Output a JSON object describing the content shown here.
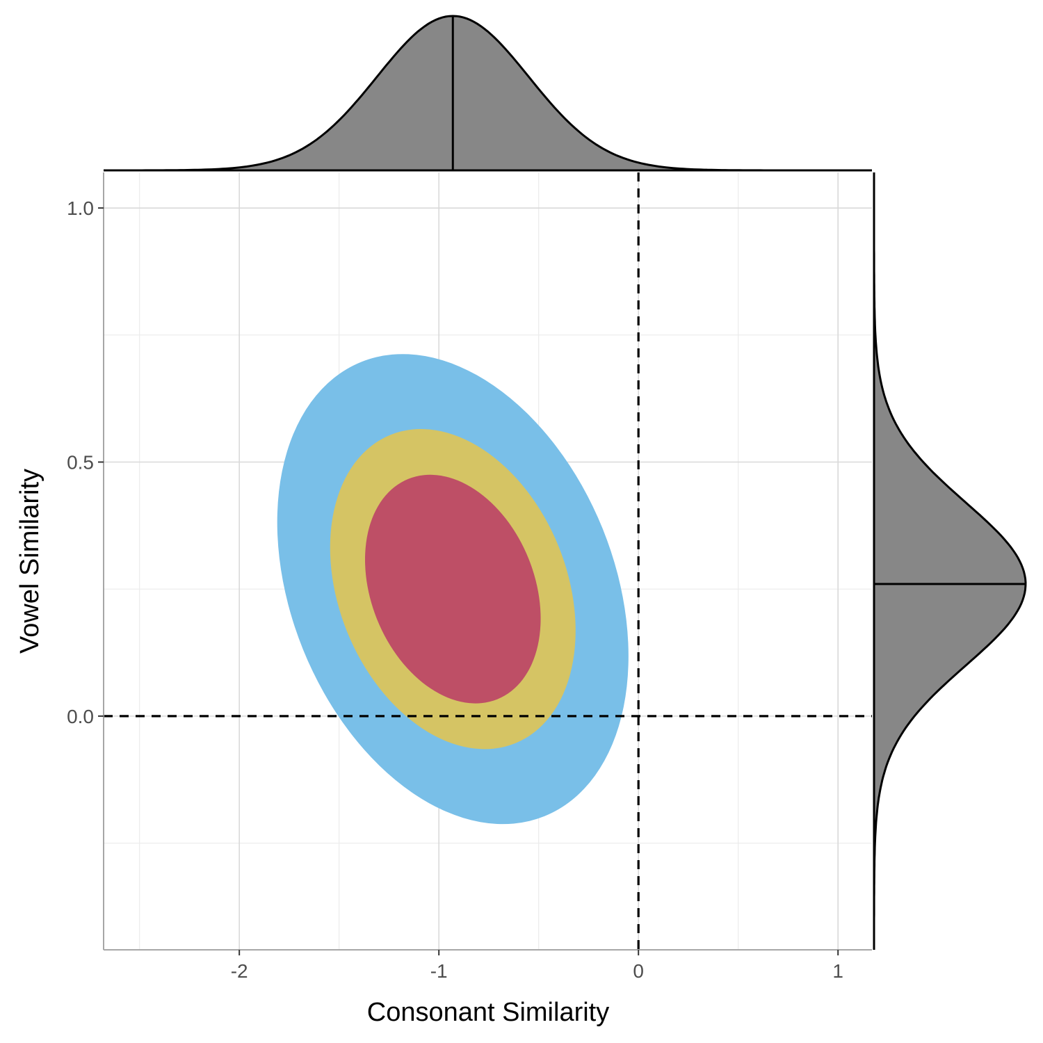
{
  "chart_data": {
    "type": "contour",
    "xlabel": "Consonant Similarity",
    "ylabel": "Vowel Similarity",
    "xlim": [
      -2.68,
      1.17
    ],
    "ylim": [
      -0.46,
      1.07
    ],
    "x_ticks": [
      {
        "value": -2,
        "label": "-2"
      },
      {
        "value": -1,
        "label": "-1"
      },
      {
        "value": 0,
        "label": "0"
      },
      {
        "value": 1,
        "label": "1"
      }
    ],
    "y_ticks": [
      {
        "value": 0.0,
        "label": "0.0"
      },
      {
        "value": 0.5,
        "label": "0.5"
      },
      {
        "value": 1.0,
        "label": "1.0"
      }
    ],
    "x_minor_gridlines": [
      -2.5,
      -1.5,
      -0.5,
      0.5
    ],
    "y_minor_gridlines": [
      -0.25,
      0.25,
      0.75
    ],
    "grid": true,
    "reference_lines": [
      {
        "orientation": "vertical",
        "value": 0,
        "style": "dashed"
      },
      {
        "orientation": "horizontal",
        "value": 0,
        "style": "dashed"
      }
    ],
    "regions": [
      {
        "name": "outer",
        "color": "#79bfe8",
        "center": [
          -0.93,
          0.25
        ],
        "x_extent": [
          -1.79,
          -0.03
        ],
        "y_extent": [
          -0.205,
          0.72
        ],
        "rotation_deg": 22
      },
      {
        "name": "middle",
        "color": "#d5c464",
        "center": [
          -0.93,
          0.25
        ],
        "x_extent": [
          -1.54,
          -0.31
        ],
        "y_extent": [
          -0.055,
          0.575
        ],
        "rotation_deg": 22
      },
      {
        "name": "inner",
        "color": "#be4f66",
        "center": [
          -0.93,
          0.25
        ],
        "x_extent": [
          -1.37,
          -0.49
        ],
        "y_extent": [
          0.035,
          0.485
        ],
        "rotation_deg": 22
      }
    ],
    "marginal_x": {
      "type": "density",
      "fill": "#878787",
      "median": -0.93,
      "mean": -0.93,
      "sd": 0.38
    },
    "marginal_y": {
      "type": "density",
      "fill": "#878787",
      "median": 0.26,
      "mean": 0.26,
      "sd": 0.16
    }
  }
}
